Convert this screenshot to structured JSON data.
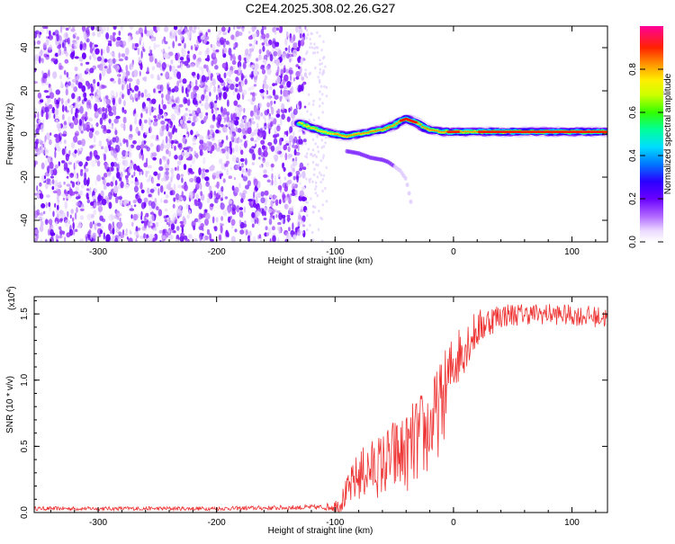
{
  "figure": {
    "title": "C2E4.2025.308.02.26.G27"
  },
  "chart_data": [
    {
      "type": "heatmap",
      "title": "C2E4.2025.308.02.26.G27",
      "xlabel": "Height of straight line (km)",
      "ylabel": "Frequency (Hz)",
      "xlim": [
        -354,
        130
      ],
      "ylim": [
        -50,
        50
      ],
      "x_ticks": [
        -300,
        -200,
        -100,
        0,
        100
      ],
      "y_ticks": [
        -40,
        -20,
        0,
        20,
        40
      ],
      "noise_region_x": [
        -354,
        -125
      ],
      "signal_track": {
        "x": [
          -130,
          -120,
          -110,
          -100,
          -90,
          -80,
          -70,
          -60,
          -50,
          -45,
          -40,
          -35,
          -30,
          -25,
          -20,
          -10,
          0,
          10,
          20,
          40,
          60,
          80,
          90,
          100,
          110,
          130
        ],
        "freq": [
          5,
          3,
          1,
          0,
          -1,
          0,
          1,
          2,
          4,
          6,
          7,
          6,
          5,
          3,
          2,
          1,
          1,
          1,
          1,
          1,
          1,
          1,
          1,
          1,
          1,
          1
        ]
      },
      "faint_branch": {
        "x": [
          -90,
          -80,
          -70,
          -60,
          -55,
          -50,
          -45,
          -40,
          -35
        ],
        "freq": [
          -8,
          -9,
          -11,
          -12,
          -13,
          -15,
          -17,
          -21,
          -34
        ]
      },
      "colorbar": {
        "label": "Normalized spectral amplitude",
        "range": [
          0,
          1
        ],
        "ticks": [
          "0.0",
          "0.2",
          "0.4",
          "0.6",
          "0.8"
        ],
        "tick_values": [
          0,
          0.2,
          0.4,
          0.6,
          0.8
        ],
        "colormap": [
          "#ffffff",
          "#e8d8ff",
          "#8800ff",
          "#2b00ff",
          "#0088ff",
          "#00e5ff",
          "#00ff66",
          "#99ff00",
          "#ffff00",
          "#ff9900",
          "#ff0000",
          "#ff00aa"
        ]
      }
    },
    {
      "type": "line",
      "xlabel": "Height of straight line (km)",
      "ylabel": "SNR (10 * v/v)",
      "y_scale_label": "(x10",
      "y_scale_exponent": "4",
      "y_scale_close": ")",
      "xlim": [
        -354,
        130
      ],
      "ylim": [
        0,
        1.63
      ],
      "x_ticks": [
        -300,
        -200,
        -100,
        0,
        100
      ],
      "y_ticks": [
        "0.0",
        "0.5",
        "1.0",
        "1.5"
      ],
      "y_tick_values": [
        0,
        0.5,
        1.0,
        1.5
      ],
      "series_color": "#ee3333",
      "envelope": {
        "x": [
          -354,
          -300,
          -200,
          -110,
          -100,
          -95,
          -90,
          -80,
          -70,
          -60,
          -50,
          -40,
          -30,
          -20,
          -10,
          0,
          10,
          20,
          30,
          40,
          60,
          80,
          100,
          120,
          130
        ],
        "mean": [
          0.03,
          0.03,
          0.03,
          0.04,
          0.05,
          0.08,
          0.15,
          0.28,
          0.33,
          0.36,
          0.42,
          0.45,
          0.55,
          0.63,
          0.82,
          1.13,
          1.27,
          1.38,
          1.45,
          1.49,
          1.5,
          1.5,
          1.49,
          1.48,
          1.47
        ],
        "spread": [
          0.015,
          0.015,
          0.015,
          0.02,
          0.05,
          0.08,
          0.12,
          0.2,
          0.22,
          0.25,
          0.3,
          0.3,
          0.35,
          0.35,
          0.35,
          0.25,
          0.2,
          0.15,
          0.12,
          0.1,
          0.08,
          0.08,
          0.08,
          0.08,
          0.08
        ]
      }
    }
  ]
}
